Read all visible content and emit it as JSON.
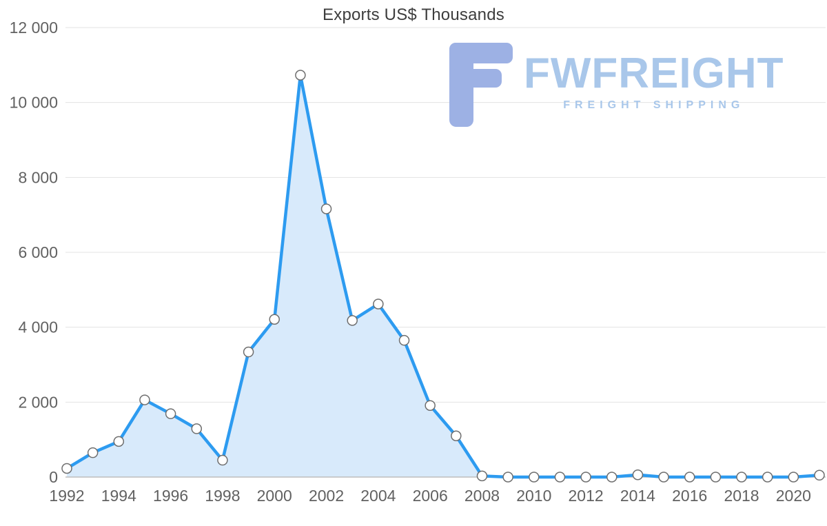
{
  "chart_data": {
    "type": "area",
    "title": "Exports US$ Thousands",
    "x": [
      1992,
      1993,
      1994,
      1995,
      1996,
      1997,
      1998,
      1999,
      2000,
      2001,
      2002,
      2003,
      2004,
      2005,
      2006,
      2007,
      2008,
      2009,
      2010,
      2011,
      2012,
      2013,
      2014,
      2015,
      2016,
      2017,
      2018,
      2019,
      2020,
      2021
    ],
    "series": [
      {
        "name": "Exports US$ Thousands",
        "values": [
          230,
          650,
          950,
          2060,
          1690,
          1290,
          450,
          3340,
          4210,
          10730,
          7160,
          4180,
          4620,
          3650,
          1910,
          1100,
          30,
          0,
          0,
          0,
          0,
          0,
          60,
          0,
          0,
          0,
          0,
          0,
          0,
          50
        ]
      }
    ],
    "ylim": [
      0,
      12000
    ],
    "yticks": [
      0,
      2000,
      4000,
      6000,
      8000,
      10000,
      12000
    ],
    "ytick_labels": [
      "0",
      "2 000",
      "4 000",
      "6 000",
      "8 000",
      "10 000",
      "12 000"
    ],
    "xtick_labels": [
      "1992",
      "1994",
      "1996",
      "1998",
      "2000",
      "2002",
      "2004",
      "2006",
      "2008",
      "2010",
      "2012",
      "2014",
      "2016",
      "2018",
      "2020"
    ],
    "grid": true,
    "legend": "none",
    "colors": {
      "line": "#2d9bf0",
      "area": "#d8eafb",
      "marker_fill": "#ffffff",
      "marker_stroke": "#6e6e6e",
      "grid": "#e3e3e3",
      "axis": "#bdbdbd",
      "tick_text": "#616161",
      "title": "#3d3d3d"
    }
  },
  "watermark": {
    "brand": "FWFREIGHT",
    "tagline": "FREIGHT SHIPPING",
    "text_color": "#a9c7ea",
    "logo_color": "#9db1e4"
  }
}
